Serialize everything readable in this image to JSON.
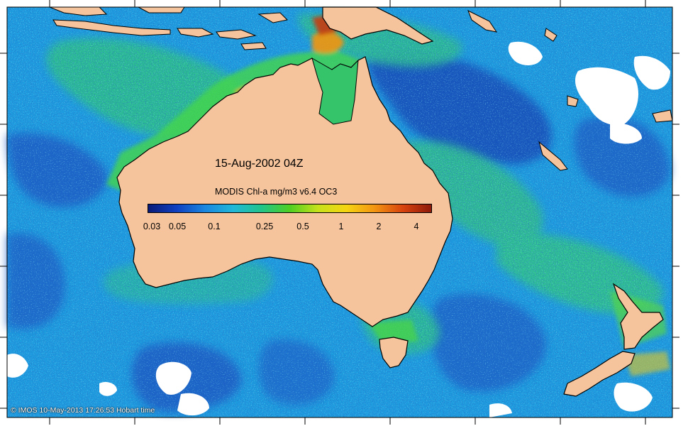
{
  "map": {
    "title": "15-Aug-2002 04Z",
    "colors": {
      "ocean_low": "#1546b8",
      "ocean_mid": "#1e9de0",
      "ocean_high": "#2ec86a",
      "land": "#f6c49c",
      "cloud": "#ffffff",
      "coastline": "#000000"
    }
  },
  "legend": {
    "title": "MODIS Chl-a mg/m3 v6.4 OC3",
    "ticks": [
      "0.03",
      "0.05",
      "0.1",
      "0.25",
      "0.5",
      "1",
      "2",
      "4"
    ],
    "gradient": [
      "#0a1b78",
      "#0f3fc0",
      "#1a86e0",
      "#21b7d8",
      "#22c48a",
      "#4fcf22",
      "#c7e21a",
      "#f5d512",
      "#f39512",
      "#d8420e",
      "#8e1a0a"
    ]
  },
  "footer": {
    "text": "© IMOS 10-May-2013 17:26:53 Hobart time"
  }
}
